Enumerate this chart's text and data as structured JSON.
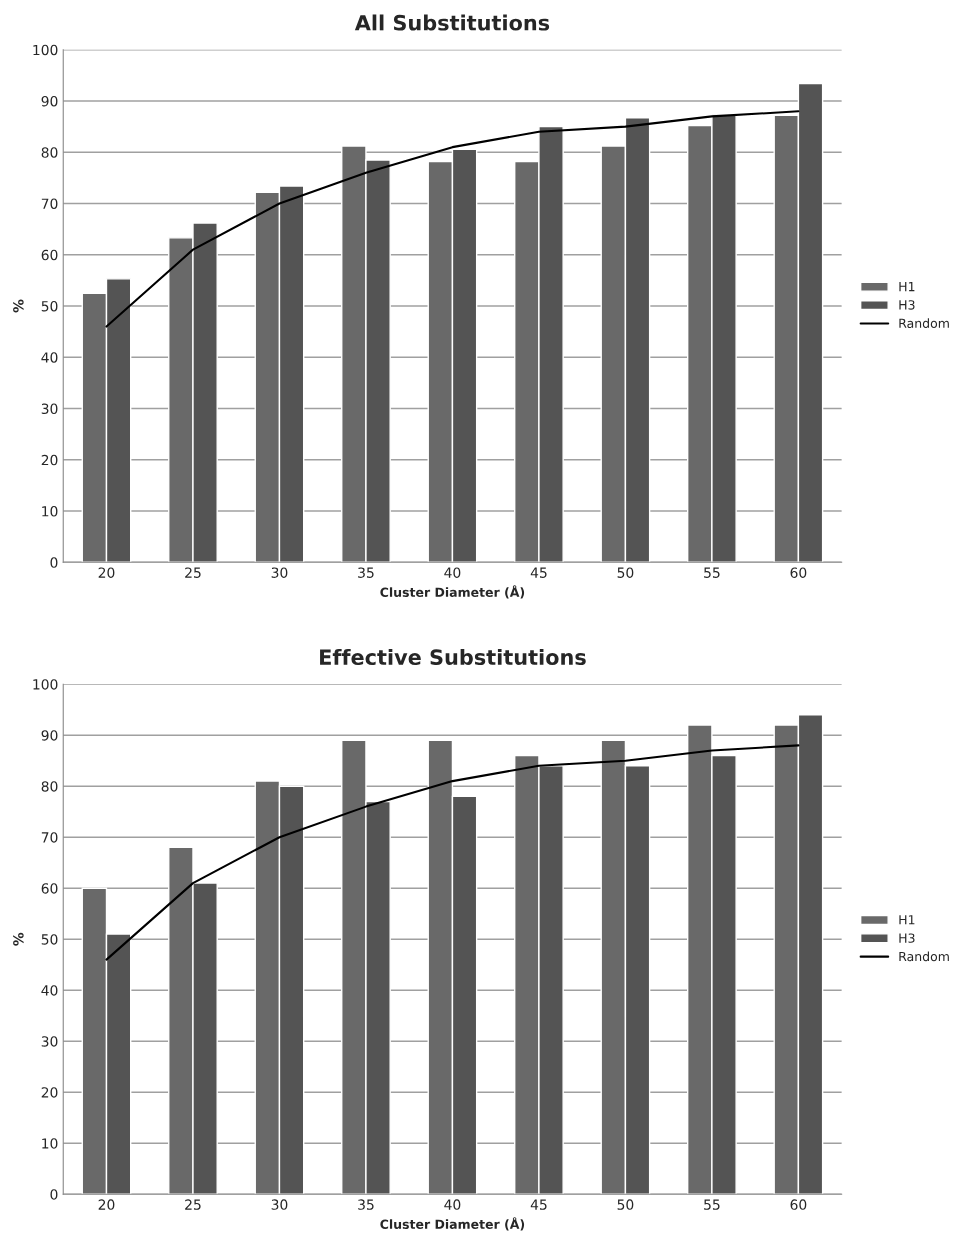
{
  "chart_data": [
    {
      "type": "bar",
      "title": "All Substitutions",
      "xlabel": "Cluster Diameter (Å)",
      "ylabel": "%",
      "categories": [
        "20",
        "25",
        "30",
        "35",
        "40",
        "45",
        "50",
        "55",
        "60"
      ],
      "series": [
        {
          "name": "H1",
          "color": "#696969",
          "values": [
            52.5,
            63.3,
            72.2,
            81.2,
            78.2,
            78.2,
            81.2,
            85.2,
            87.2
          ]
        },
        {
          "name": "H3",
          "color": "#545454",
          "values": [
            55.3,
            66.2,
            73.4,
            78.5,
            80.6,
            85.0,
            86.7,
            87.3,
            93.4
          ]
        },
        {
          "name": "Random",
          "type": "line",
          "color": "#000000",
          "values": [
            46,
            61,
            70,
            76,
            81,
            84,
            85,
            87,
            88
          ]
        }
      ],
      "ylim": [
        0,
        100
      ],
      "yticks": [
        0,
        10,
        20,
        30,
        40,
        50,
        60,
        70,
        80,
        90,
        100
      ],
      "grid": "y",
      "legend": "right"
    },
    {
      "type": "bar",
      "title": "Effective Substitutions",
      "xlabel": "Cluster Diameter (Å)",
      "ylabel": "%",
      "categories": [
        "20",
        "25",
        "30",
        "35",
        "40",
        "45",
        "50",
        "55",
        "60"
      ],
      "series": [
        {
          "name": "H1",
          "color": "#696969",
          "values": [
            60,
            68,
            81,
            89,
            89,
            86,
            89,
            92,
            92
          ]
        },
        {
          "name": "H3",
          "color": "#545454",
          "values": [
            51,
            61,
            80,
            77,
            78,
            84,
            84,
            86,
            94
          ]
        },
        {
          "name": "Random",
          "type": "line",
          "color": "#000000",
          "values": [
            46,
            61,
            70,
            76,
            81,
            84,
            85,
            87,
            88
          ]
        }
      ],
      "ylim": [
        0,
        100
      ],
      "yticks": [
        0,
        10,
        20,
        30,
        40,
        50,
        60,
        70,
        80,
        90,
        100
      ],
      "grid": "y",
      "legend": "right"
    }
  ]
}
